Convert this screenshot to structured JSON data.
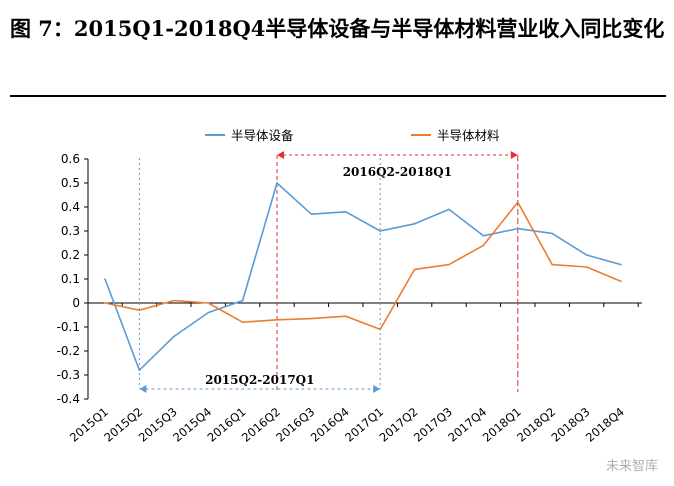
{
  "title_prefix": "图 7：2015Q1-2018Q4",
  "title_rest": "半导体设备与半导体材料营业收入同比变化",
  "watermark": "未来智库",
  "chart_data": {
    "type": "line",
    "categories": [
      "2015Q1",
      "2015Q2",
      "2015Q3",
      "2015Q4",
      "2016Q1",
      "2016Q2",
      "2016Q3",
      "2016Q4",
      "2017Q1",
      "2017Q2",
      "2017Q3",
      "2017Q4",
      "2018Q1",
      "2018Q2",
      "2018Q3",
      "2018Q4"
    ],
    "series": [
      {
        "name": "半导体设备",
        "color": "#5b9bd5",
        "values": [
          0.1,
          -0.28,
          -0.14,
          -0.04,
          0.01,
          0.5,
          0.37,
          0.38,
          0.3,
          0.33,
          0.39,
          0.28,
          0.31,
          0.29,
          0.2,
          0.16
        ]
      },
      {
        "name": "半导体材料",
        "color": "#ed7d31",
        "values": [
          0.0,
          -0.03,
          0.01,
          0.0,
          -0.08,
          -0.07,
          -0.065,
          -0.055,
          -0.11,
          0.14,
          0.16,
          0.24,
          0.42,
          0.16,
          0.15,
          0.09
        ]
      }
    ],
    "yticks": [
      "0.6",
      "0.5",
      "0.4",
      "0.3",
      "0.2",
      "0.1",
      "0",
      "-0.1",
      "-0.2",
      "-0.3",
      "-0.4"
    ],
    "ylim": [
      -0.4,
      0.6
    ],
    "legend_position": "top",
    "annotations": [
      {
        "label": "2016Q2-2018Q1",
        "from": "2016Q2",
        "to": "2018Q1",
        "color": "#e03030"
      },
      {
        "label": "2015Q2-2017Q1",
        "from": "2015Q2",
        "to": "2017Q1",
        "color": "#5b9bd5"
      }
    ]
  }
}
